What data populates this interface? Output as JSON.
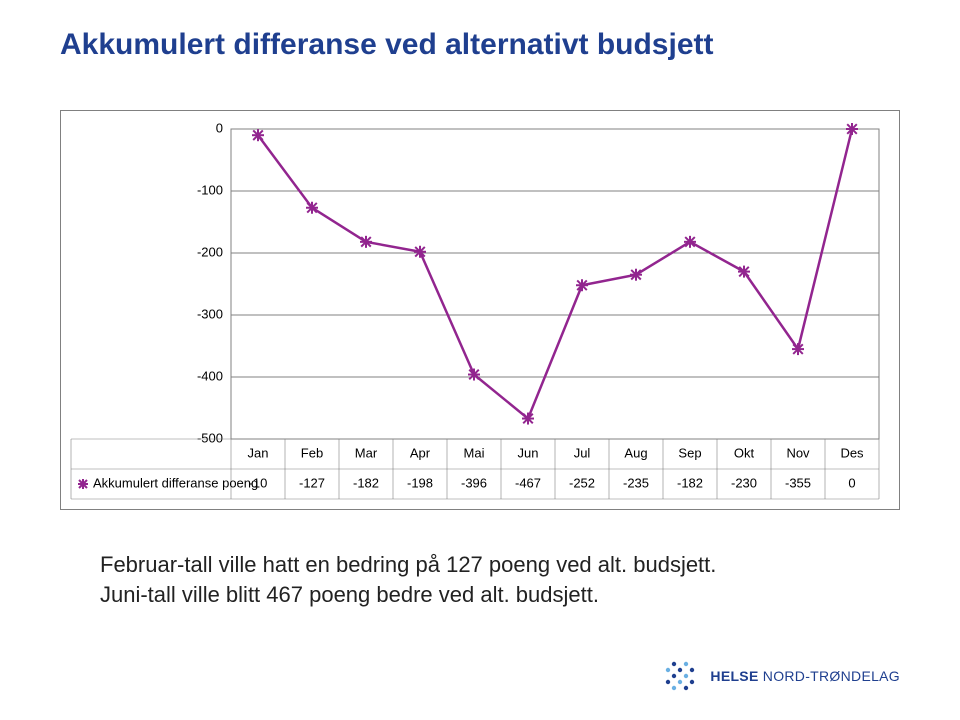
{
  "title": "Akkumulert differanse ved alternativt budsjett",
  "caption_line1": "Februar-tall ville hatt en bedring på 127 poeng ved alt. budsjett.",
  "caption_line2": "Juni-tall ville blitt 467 poeng bedre ved alt. budsjett.",
  "logo_text_bold": "HELSE",
  "logo_text_rest": " NORD-TRØNDELAG",
  "chart": {
    "type": "line",
    "background_color": "#ffffff",
    "border_color": "#808080",
    "grid_color": "#808080",
    "series_color": "#92258f",
    "series_name": "Akkumulert differanse poeng",
    "marker_style": "asterisk",
    "marker_size": 6,
    "line_width": 2.5,
    "categories": [
      "Jan",
      "Feb",
      "Mar",
      "Apr",
      "Mai",
      "Jun",
      "Jul",
      "Aug",
      "Sep",
      "Okt",
      "Nov",
      "Des"
    ],
    "values": [
      -10,
      -127,
      -182,
      -198,
      -396,
      -467,
      -252,
      -235,
      -182,
      -230,
      -355,
      0
    ],
    "ylim": [
      -500,
      0
    ],
    "ytick_step": 100,
    "yticks": [
      0,
      -100,
      -200,
      -300,
      -400,
      -500
    ],
    "label_fontsize": 13
  }
}
